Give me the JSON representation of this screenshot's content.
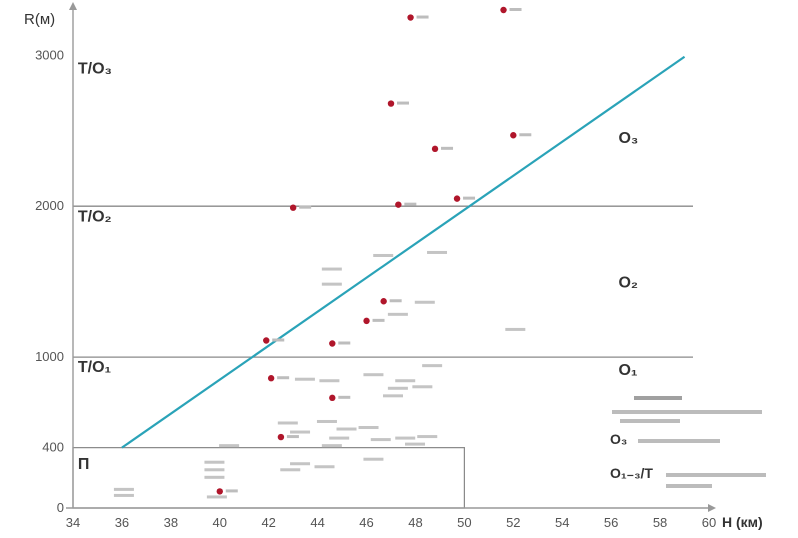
{
  "chart_data": {
    "type": "scatter",
    "title": "",
    "xlabel": "H (км)",
    "ylabel": "R(м)",
    "xlim": [
      34,
      60
    ],
    "ylim": [
      0,
      3300
    ],
    "x_ticks": [
      "34",
      "36",
      "38",
      "40",
      "42",
      "44",
      "46",
      "48",
      "50",
      "52",
      "54",
      "56",
      "58",
      "60"
    ],
    "y_ticks": [
      {
        "value": 0,
        "label": "0"
      },
      {
        "value": 400,
        "label": "400"
      },
      {
        "value": 1000,
        "label": "1000"
      },
      {
        "value": 2000,
        "label": "2000"
      },
      {
        "value": 3000,
        "label": "3000"
      }
    ],
    "grid": false,
    "horizontal_lines": [
      1000,
      2000
    ],
    "fit_line": {
      "x": [
        36,
        59
      ],
      "y": [
        400,
        2990
      ],
      "color": "#2aa3b8"
    },
    "box": {
      "x": [
        34,
        50
      ],
      "y": [
        0,
        400
      ]
    },
    "regions": [
      {
        "label": "T/O₃",
        "x": 34.2,
        "y": 2880
      },
      {
        "label": "T/O₂",
        "x": 34.2,
        "y": 1900
      },
      {
        "label": "T/O₁",
        "x": 34.2,
        "y": 900
      },
      {
        "label": "O₃",
        "x": 56.3,
        "y": 2420
      },
      {
        "label": "O₂",
        "x": 56.3,
        "y": 1460
      },
      {
        "label": "O₁",
        "x": 56.3,
        "y": 880
      },
      {
        "label": "П",
        "x": 34.2,
        "y": 260
      }
    ],
    "series": [
      {
        "marker": "red-dot",
        "color": "#b0162b",
        "points": [
          {
            "x": 47.8,
            "y": 3250
          },
          {
            "x": 51.6,
            "y": 3300
          },
          {
            "x": 47.0,
            "y": 2680
          },
          {
            "x": 52.0,
            "y": 2470
          },
          {
            "x": 48.8,
            "y": 2380
          },
          {
            "x": 49.7,
            "y": 2050
          },
          {
            "x": 43.0,
            "y": 1990
          },
          {
            "x": 47.3,
            "y": 2010
          },
          {
            "x": 46.7,
            "y": 1370
          },
          {
            "x": 46.0,
            "y": 1240
          },
          {
            "x": 44.6,
            "y": 1090
          },
          {
            "x": 41.9,
            "y": 1110
          },
          {
            "x": 42.1,
            "y": 860
          },
          {
            "x": 44.6,
            "y": 730
          },
          {
            "x": 42.5,
            "y": 470
          },
          {
            "x": 40.0,
            "y": 110
          }
        ]
      },
      {
        "marker": "text-only",
        "color": "#888888",
        "points": [
          {
            "x": 44.5,
            "y": 1580
          },
          {
            "x": 44.5,
            "y": 1480
          },
          {
            "x": 46.6,
            "y": 1670
          },
          {
            "x": 48.8,
            "y": 1690
          },
          {
            "x": 52.0,
            "y": 1180
          },
          {
            "x": 47.2,
            "y": 1280
          },
          {
            "x": 48.3,
            "y": 1360
          },
          {
            "x": 48.6,
            "y": 940
          },
          {
            "x": 46.2,
            "y": 880
          },
          {
            "x": 47.5,
            "y": 840
          },
          {
            "x": 47.2,
            "y": 790
          },
          {
            "x": 48.2,
            "y": 800
          },
          {
            "x": 44.4,
            "y": 840
          },
          {
            "x": 43.4,
            "y": 850
          },
          {
            "x": 47.0,
            "y": 740
          },
          {
            "x": 42.7,
            "y": 560
          },
          {
            "x": 44.3,
            "y": 570
          },
          {
            "x": 46.0,
            "y": 530
          },
          {
            "x": 45.1,
            "y": 520
          },
          {
            "x": 43.2,
            "y": 500
          },
          {
            "x": 44.8,
            "y": 460
          },
          {
            "x": 46.5,
            "y": 450
          },
          {
            "x": 47.5,
            "y": 460
          },
          {
            "x": 48.4,
            "y": 470
          },
          {
            "x": 47.9,
            "y": 420
          },
          {
            "x": 44.5,
            "y": 410
          },
          {
            "x": 40.3,
            "y": 410
          },
          {
            "x": 46.2,
            "y": 320
          },
          {
            "x": 43.2,
            "y": 290
          },
          {
            "x": 42.8,
            "y": 250
          },
          {
            "x": 44.2,
            "y": 270
          },
          {
            "x": 39.7,
            "y": 300
          },
          {
            "x": 39.7,
            "y": 250
          },
          {
            "x": 39.7,
            "y": 200
          },
          {
            "x": 36.0,
            "y": 120
          },
          {
            "x": 36.0,
            "y": 80
          },
          {
            "x": 39.8,
            "y": 70
          }
        ]
      }
    ],
    "legend": {
      "placement": "bottom-right",
      "title": "",
      "items": [
        {
          "symbol": "",
          "text": ""
        },
        {
          "symbol": "O₃",
          "text": ""
        },
        {
          "symbol": "O₁₋₃/T",
          "text": ""
        }
      ]
    }
  },
  "colors": {
    "axis": "#999999",
    "hline": "#8a8a8a",
    "box": "#888888",
    "fit": "#2aa3b8",
    "point": "#b0162b",
    "text": "#333333"
  }
}
